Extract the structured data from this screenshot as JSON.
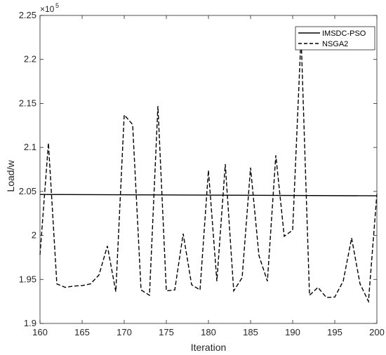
{
  "chart_data": {
    "type": "line",
    "title": "",
    "xlabel": "Iteration",
    "ylabel": "Load/w",
    "xlim": [
      160,
      200
    ],
    "ylim": [
      190000,
      225000
    ],
    "exponent_label": "×10",
    "exponent_power": "5",
    "xticks": [
      "160",
      "165",
      "170",
      "175",
      "180",
      "185",
      "190",
      "195",
      "200"
    ],
    "yticks": [
      "1.9",
      "1.95",
      "2",
      "2.05",
      "2.1",
      "2.15",
      "2.2",
      "2.25"
    ],
    "xtick_values": [
      160,
      165,
      170,
      175,
      180,
      185,
      190,
      195,
      200
    ],
    "ytick_values": [
      190000,
      195000,
      200000,
      205000,
      210000,
      215000,
      220000,
      225000
    ],
    "grid": false,
    "legend_position": "top-right",
    "series": [
      {
        "name": "IMSDC-PSO",
        "style": "solid",
        "color": "#000000",
        "x": [
          160,
          200
        ],
        "y": [
          204650,
          204500
        ]
      },
      {
        "name": "NSGA2",
        "style": "dashed",
        "color": "#000000",
        "x": [
          160,
          161,
          162,
          163,
          164,
          165,
          166,
          167,
          168,
          169,
          170,
          171,
          172,
          173,
          174,
          175,
          176,
          177,
          178,
          179,
          180,
          181,
          182,
          183,
          184,
          185,
          186,
          187,
          188,
          189,
          190,
          191,
          192,
          193,
          194,
          195,
          196,
          197,
          198,
          199,
          200
        ],
        "y": [
          197800,
          210500,
          194500,
          194100,
          194250,
          194300,
          194500,
          195500,
          198800,
          193600,
          213700,
          212600,
          193800,
          193200,
          214700,
          193700,
          193800,
          200200,
          194400,
          193800,
          207400,
          194800,
          208100,
          193700,
          195200,
          207700,
          197700,
          194800,
          209100,
          199900,
          200600,
          222700,
          193200,
          194100,
          192950,
          193000,
          194800,
          199700,
          194500,
          192500,
          204700
        ]
      }
    ]
  }
}
